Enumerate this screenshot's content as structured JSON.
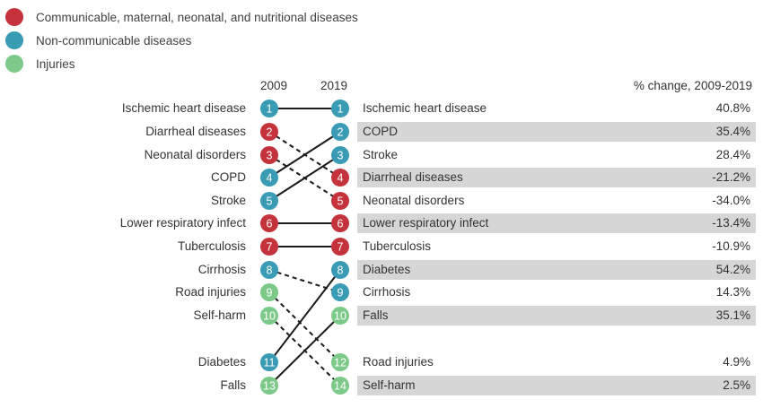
{
  "colors": {
    "communicable": "#c4323c",
    "noncommunicable": "#3a9bb5",
    "injuries": "#7cc989"
  },
  "legend": [
    {
      "label": "Communicable, maternal, neonatal, and nutritional diseases",
      "group": "communicable"
    },
    {
      "label": "Non-communicable diseases",
      "group": "noncommunicable"
    },
    {
      "label": "Injuries",
      "group": "injuries"
    }
  ],
  "headers": {
    "year_left": "2009",
    "year_right": "2019",
    "pct": "% change, 2009-2019"
  },
  "left_items": [
    {
      "label": "Ischemic heart disease",
      "rank": "1",
      "group": "noncommunicable"
    },
    {
      "label": "Diarrheal diseases",
      "rank": "2",
      "group": "communicable"
    },
    {
      "label": "Neonatal disorders",
      "rank": "3",
      "group": "communicable"
    },
    {
      "label": "COPD",
      "rank": "4",
      "group": "noncommunicable"
    },
    {
      "label": "Stroke",
      "rank": "5",
      "group": "noncommunicable"
    },
    {
      "label": "Lower respiratory infect",
      "rank": "6",
      "group": "communicable"
    },
    {
      "label": "Tuberculosis",
      "rank": "7",
      "group": "communicable"
    },
    {
      "label": "Cirrhosis",
      "rank": "8",
      "group": "noncommunicable"
    },
    {
      "label": "Road injuries",
      "rank": "9",
      "group": "injuries"
    },
    {
      "label": "Self-harm",
      "rank": "10",
      "group": "injuries"
    },
    {
      "label": "Diabetes",
      "rank": "11",
      "group": "noncommunicable"
    },
    {
      "label": "Falls",
      "rank": "13",
      "group": "injuries"
    }
  ],
  "right_items": [
    {
      "label": "Ischemic heart disease",
      "rank": "1",
      "group": "noncommunicable",
      "pct": "40.8%"
    },
    {
      "label": "COPD",
      "rank": "2",
      "group": "noncommunicable",
      "pct": "35.4%"
    },
    {
      "label": "Stroke",
      "rank": "3",
      "group": "noncommunicable",
      "pct": "28.4%"
    },
    {
      "label": "Diarrheal diseases",
      "rank": "4",
      "group": "communicable",
      "pct": "-21.2%"
    },
    {
      "label": "Neonatal disorders",
      "rank": "5",
      "group": "communicable",
      "pct": "-34.0%"
    },
    {
      "label": "Lower respiratory infect",
      "rank": "6",
      "group": "communicable",
      "pct": "-13.4%"
    },
    {
      "label": "Tuberculosis",
      "rank": "7",
      "group": "communicable",
      "pct": "-10.9%"
    },
    {
      "label": "Diabetes",
      "rank": "8",
      "group": "noncommunicable",
      "pct": "54.2%"
    },
    {
      "label": "Cirrhosis",
      "rank": "9",
      "group": "noncommunicable",
      "pct": "14.3%"
    },
    {
      "label": "Falls",
      "rank": "10",
      "group": "injuries",
      "pct": "35.1%"
    },
    {
      "label": "Road injuries",
      "rank": "12",
      "group": "injuries",
      "pct": "4.9%"
    },
    {
      "label": "Self-harm",
      "rank": "14",
      "group": "injuries",
      "pct": "2.5%"
    }
  ],
  "connectors": [
    {
      "from": "Ischemic heart disease",
      "to": "Ischemic heart disease",
      "style": "solid"
    },
    {
      "from": "Diarrheal diseases",
      "to": "Diarrheal diseases",
      "style": "dashed"
    },
    {
      "from": "Neonatal disorders",
      "to": "Neonatal disorders",
      "style": "dashed"
    },
    {
      "from": "COPD",
      "to": "COPD",
      "style": "solid"
    },
    {
      "from": "Stroke",
      "to": "Stroke",
      "style": "solid"
    },
    {
      "from": "Lower respiratory infect",
      "to": "Lower respiratory infect",
      "style": "solid"
    },
    {
      "from": "Tuberculosis",
      "to": "Tuberculosis",
      "style": "solid"
    },
    {
      "from": "Cirrhosis",
      "to": "Cirrhosis",
      "style": "dashed"
    },
    {
      "from": "Road injuries",
      "to": "Road injuries",
      "style": "dashed"
    },
    {
      "from": "Self-harm",
      "to": "Self-harm",
      "style": "dashed"
    },
    {
      "from": "Diabetes",
      "to": "Diabetes",
      "style": "solid"
    },
    {
      "from": "Falls",
      "to": "Falls",
      "style": "solid"
    }
  ]
}
